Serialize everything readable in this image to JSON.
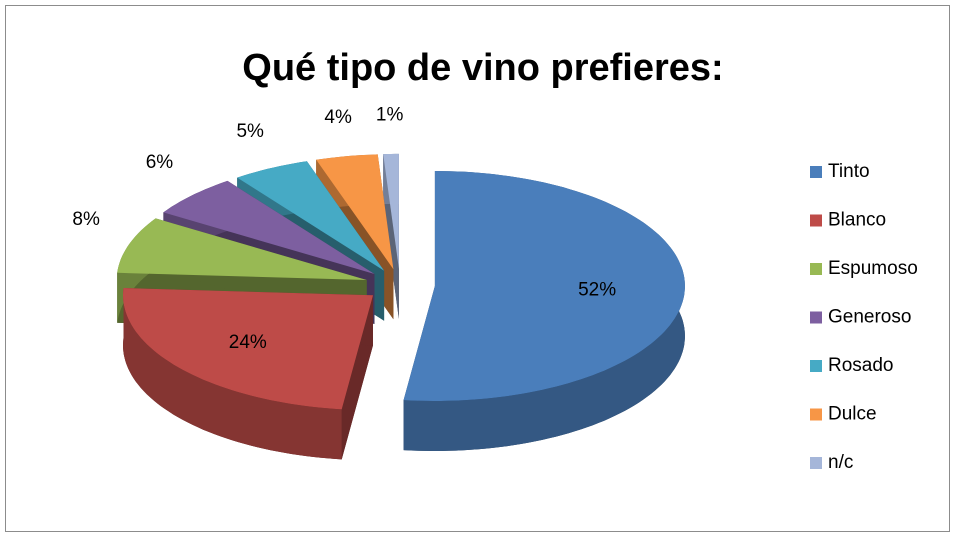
{
  "chart_data": {
    "type": "pie",
    "title": "Qué tipo de vino prefieres:",
    "categories": [
      "Tinto",
      "Blanco",
      "Espumoso",
      "Generoso",
      "Rosado",
      "Dulce",
      "n/c"
    ],
    "values": [
      52,
      24,
      8,
      6,
      5,
      4,
      1
    ],
    "value_labels": [
      "52%",
      "24%",
      "8%",
      "6%",
      "5%",
      "4%",
      "1%"
    ],
    "colors": [
      "#4a7ebb",
      "#be4b48",
      "#98b954",
      "#7d5fa0",
      "#46aac5",
      "#f79646",
      "#a5b6d9"
    ],
    "legend": "right"
  }
}
